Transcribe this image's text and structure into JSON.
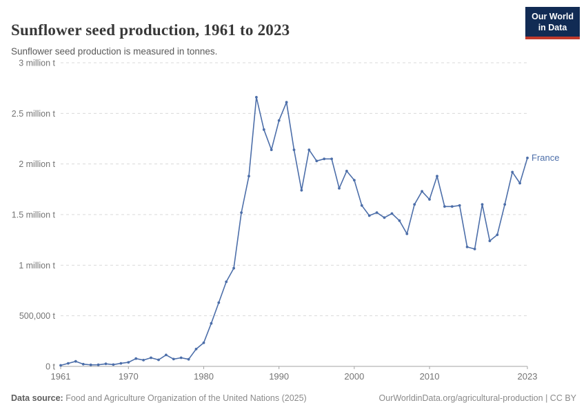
{
  "header": {
    "title": "Sunflower seed production, 1961 to 2023",
    "subtitle": "Sunflower seed production is measured in tonnes.",
    "logo": {
      "line1": "Our World",
      "line2": "in Data",
      "bg_color": "#112B54",
      "accent_color": "#C0392B"
    }
  },
  "chart_data": {
    "type": "line",
    "title": "Sunflower seed production, 1961 to 2023",
    "xlabel": "",
    "ylabel": "tonnes",
    "xlim": [
      1961,
      2023
    ],
    "ylim": [
      0,
      3000000
    ],
    "grid": "horizontal-dashed",
    "legend_position": "end-of-line-label",
    "xticks": [
      1961,
      1970,
      1980,
      1990,
      2000,
      2010,
      2023
    ],
    "yticks": [
      {
        "value": 0,
        "label": "0 t"
      },
      {
        "value": 500000,
        "label": "500,000 t"
      },
      {
        "value": 1000000,
        "label": "1 million t"
      },
      {
        "value": 1500000,
        "label": "1.5 million t"
      },
      {
        "value": 2000000,
        "label": "2 million t"
      },
      {
        "value": 2500000,
        "label": "2.5 million t"
      },
      {
        "value": 3000000,
        "label": "3 million t"
      }
    ],
    "series": [
      {
        "name": "France",
        "color": "#4C6EA9",
        "x": [
          1961,
          1962,
          1963,
          1964,
          1965,
          1966,
          1967,
          1968,
          1969,
          1970,
          1971,
          1972,
          1973,
          1974,
          1975,
          1976,
          1977,
          1978,
          1979,
          1980,
          1981,
          1982,
          1983,
          1984,
          1985,
          1986,
          1987,
          1988,
          1989,
          1990,
          1991,
          1992,
          1993,
          1994,
          1995,
          1996,
          1997,
          1998,
          1999,
          2000,
          2001,
          2002,
          2003,
          2004,
          2005,
          2006,
          2007,
          2008,
          2009,
          2010,
          2011,
          2012,
          2013,
          2014,
          2015,
          2016,
          2017,
          2018,
          2019,
          2020,
          2021,
          2022,
          2023
        ],
        "values": [
          10000,
          30000,
          50000,
          22000,
          15000,
          16000,
          25000,
          18000,
          30000,
          40000,
          77000,
          62000,
          85000,
          65000,
          113000,
          72000,
          85000,
          70000,
          171000,
          233000,
          425000,
          630000,
          836000,
          970000,
          1520000,
          1880000,
          2660000,
          2340000,
          2140000,
          2430000,
          2610000,
          2140000,
          1740000,
          2140000,
          2030000,
          2050000,
          2050000,
          1760000,
          1930000,
          1840000,
          1590000,
          1490000,
          1520000,
          1470000,
          1510000,
          1440000,
          1310000,
          1600000,
          1730000,
          1650000,
          1880000,
          1580000,
          1580000,
          1590000,
          1180000,
          1160000,
          1600000,
          1240000,
          1300000,
          1600000,
          1920000,
          1810000,
          2060000
        ]
      }
    ],
    "grid_color": "#d9d9d9",
    "axis_color": "#a3a3a3",
    "tick_text_color": "#747474"
  },
  "footer": {
    "source_label": "Data source:",
    "source_text": " Food and Agriculture Organization of the United Nations (2025)",
    "link": "OurWorldinData.org/agricultural-production",
    "separator": " | ",
    "license": "CC BY"
  }
}
